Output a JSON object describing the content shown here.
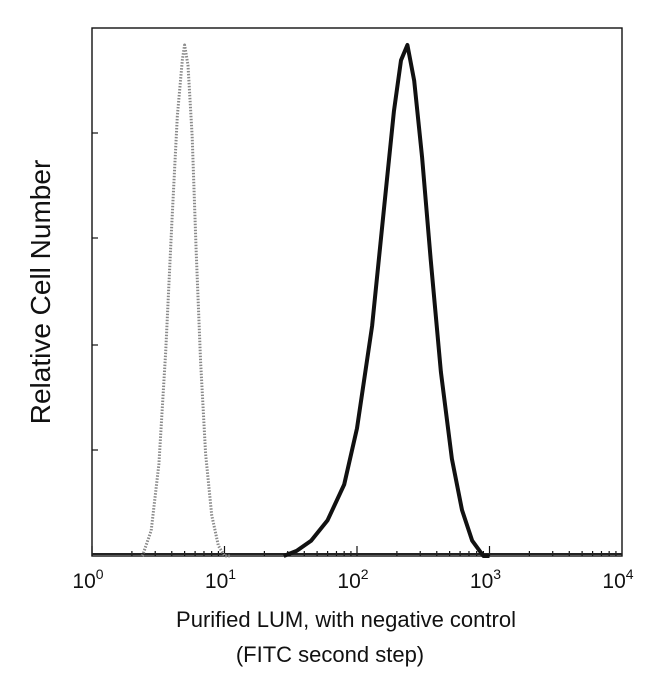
{
  "chart_data": {
    "type": "line",
    "title": "",
    "xlabel": "Purified LUM, with negative control",
    "xlabel_line2": "(FITC second step)",
    "ylabel": "Relative Cell Number",
    "x_scale": "log",
    "xlim": [
      1,
      10000
    ],
    "ylim": [
      0,
      1
    ],
    "grid": false,
    "legend": "none",
    "x_ticks": [
      {
        "value": 1,
        "base": "10",
        "exp": "0"
      },
      {
        "value": 10,
        "base": "10",
        "exp": "1"
      },
      {
        "value": 100,
        "base": "10",
        "exp": "2"
      },
      {
        "value": 1000,
        "base": "10",
        "exp": "3"
      },
      {
        "value": 10000,
        "base": "10",
        "exp": "4"
      }
    ],
    "series": [
      {
        "color": "#8a8a8a",
        "style": "dotted",
        "x": [
          2.4,
          2.8,
          3.2,
          3.6,
          4.0,
          4.4,
          4.8,
          5.0,
          5.3,
          5.7,
          6.1,
          6.6,
          7.2,
          8.0,
          9.0,
          10.0,
          11.0
        ],
        "y": [
          0.0,
          0.05,
          0.18,
          0.4,
          0.65,
          0.86,
          0.97,
          1.0,
          0.96,
          0.82,
          0.6,
          0.38,
          0.2,
          0.08,
          0.02,
          0.0,
          0.0
        ]
      },
      {
        "color": "#111111",
        "style": "solid",
        "x": [
          28,
          35,
          45,
          60,
          80,
          100,
          130,
          160,
          190,
          215,
          240,
          270,
          310,
          360,
          430,
          520,
          620,
          740,
          900,
          1000
        ],
        "y": [
          0.0,
          0.01,
          0.03,
          0.07,
          0.14,
          0.25,
          0.45,
          0.68,
          0.87,
          0.97,
          1.0,
          0.93,
          0.78,
          0.58,
          0.36,
          0.19,
          0.09,
          0.03,
          0.0,
          0.0
        ]
      }
    ]
  }
}
